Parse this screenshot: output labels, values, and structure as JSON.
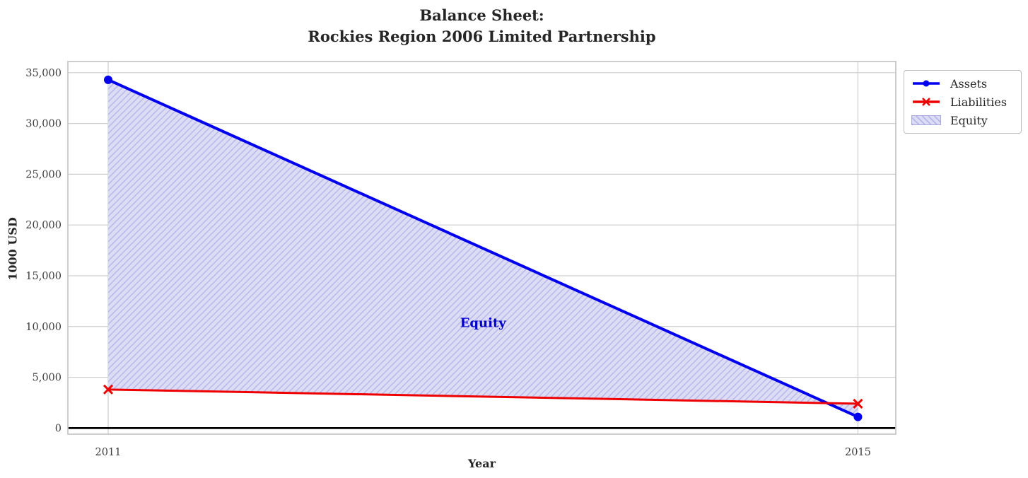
{
  "figure": {
    "title": "Balance Sheet:\nRockies Region 2006 Limited Partnership",
    "xlabel": "Year",
    "ylabel": "1000 USD"
  },
  "legend": {
    "entries": [
      {
        "label": "Assets",
        "type": "line",
        "color": "#0000ee",
        "marker": "circle"
      },
      {
        "label": "Liabilities",
        "type": "line",
        "color": "#ee0000",
        "marker": "x"
      },
      {
        "label": "Equity",
        "type": "patch",
        "color": "#dcdcf5",
        "hatch_color": "#b6b6ea"
      }
    ]
  },
  "chart_data": {
    "type": "line",
    "title": "Balance Sheet: Rockies Region 2006 Limited Partnership",
    "xlabel": "Year",
    "ylabel": "1000 USD",
    "x": [
      2011,
      2015
    ],
    "series": [
      {
        "name": "Assets",
        "values": [
          34300,
          1100
        ],
        "color": "#0000ee",
        "marker": "circle",
        "linewidth": 4
      },
      {
        "name": "Liabilities",
        "values": [
          3800,
          2400
        ],
        "color": "#ee0000",
        "marker": "x",
        "linewidth": 3
      }
    ],
    "fill_between": {
      "name": "Equity",
      "upper": "Assets",
      "lower": "Liabilities",
      "fill_color": "#dcdcf5",
      "hatch": "///",
      "hatch_color": "#b6b6ea"
    },
    "annotation": {
      "text": "Equity",
      "x": 2013,
      "y": 10300,
      "color": "#0000cc"
    },
    "xticks": [
      2011,
      2015
    ],
    "yticks": [
      0,
      5000,
      10000,
      15000,
      20000,
      25000,
      30000,
      35000
    ],
    "xlim": [
      2010.785,
      2015.202
    ],
    "ylim": [
      -600,
      36100
    ],
    "grid": true,
    "grid_color": "#cdcdcd",
    "zero_line": true,
    "zero_line_color": "#000000",
    "axis_border_color": "#c8c8c8",
    "tick_color": "#3d3d3d",
    "legend_position": "outside-right-top"
  }
}
